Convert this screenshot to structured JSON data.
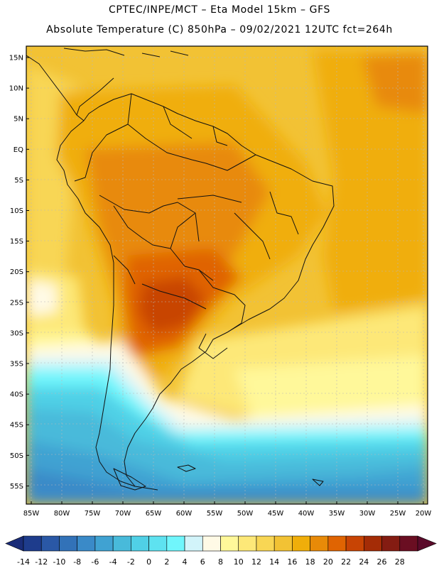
{
  "header": {
    "title_line1": "CPTEC/INPE/MCT –  Eta Model 15km – GFS",
    "title_line2": "Absolute Temperature (C) 850hPa – 09/02/2021 12UTC fct=264h"
  },
  "map": {
    "lat_labels": [
      "15N",
      "10N",
      "5N",
      "EQ",
      "5S",
      "10S",
      "15S",
      "20S",
      "25S",
      "30S",
      "35S",
      "40S",
      "45S",
      "50S",
      "55S"
    ],
    "lon_labels": [
      "85W",
      "80W",
      "75W",
      "70W",
      "65W",
      "60W",
      "55W",
      "50W",
      "45W",
      "40W",
      "35W",
      "30W",
      "25W",
      "20W"
    ]
  },
  "colorbar": {
    "labels": [
      "-14",
      "-12",
      "-10",
      "-8",
      "-6",
      "-4",
      "-2",
      "0",
      "2",
      "4",
      "6",
      "8",
      "10",
      "12",
      "14",
      "16",
      "18",
      "20",
      "22",
      "24",
      "26",
      "28"
    ],
    "colors": [
      "#1e3c8c",
      "#2a58a6",
      "#3272b8",
      "#3a8ac8",
      "#40a2d2",
      "#48bada",
      "#50d0e6",
      "#5ee2f0",
      "#70f6fc",
      "#d2f4fa",
      "#fffae6",
      "#fff89a",
      "#fde878",
      "#f8d654",
      "#f2c234",
      "#f0ae0a",
      "#e88a08",
      "#e06402",
      "#c84404",
      "#a42c06",
      "#841c12",
      "#6a0e22"
    ],
    "under_color": "#1a2c78",
    "over_color": "#5a0a2a"
  }
}
